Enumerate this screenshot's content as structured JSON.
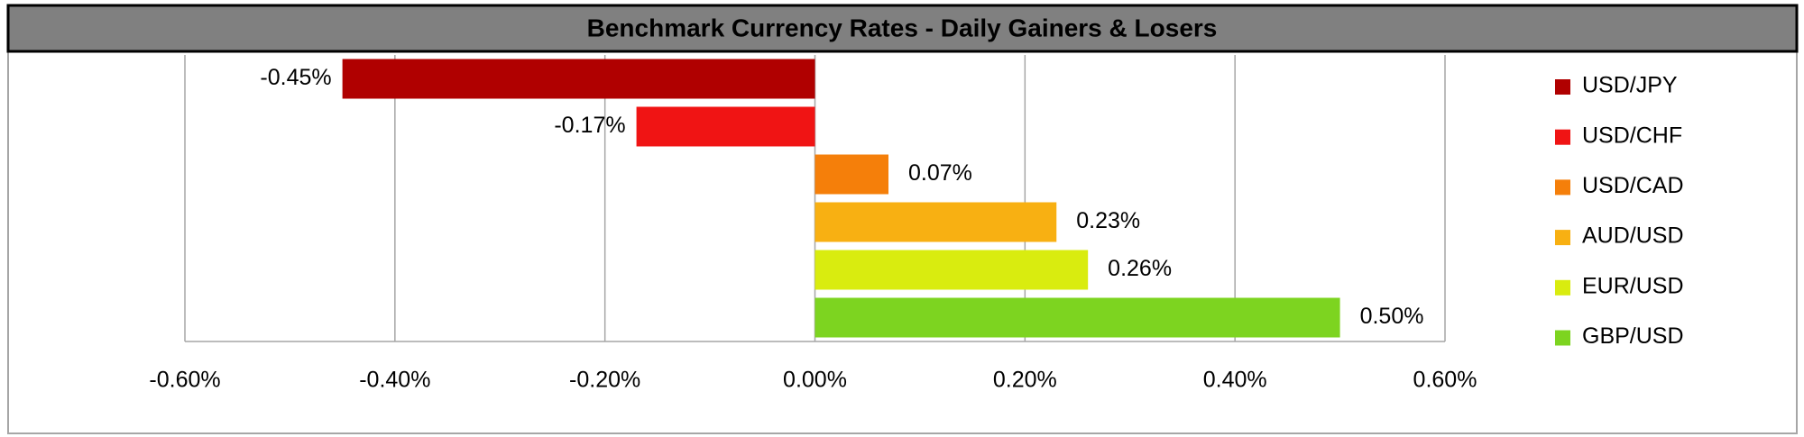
{
  "chart_data": {
    "type": "bar",
    "orientation": "horizontal",
    "title": "Benchmark Currency Rates - Daily Gainers & Losers",
    "series": [
      {
        "name": "USD/JPY",
        "color": "#b00000",
        "values": [
          -0.45
        ],
        "value_labels": [
          "-0.45%"
        ]
      },
      {
        "name": "USD/CHF",
        "color": "#f01414",
        "values": [
          -0.17
        ],
        "value_labels": [
          "-0.17%"
        ]
      },
      {
        "name": "USD/CAD",
        "color": "#f57f0a",
        "values": [
          0.07
        ],
        "value_labels": [
          "0.07%"
        ]
      },
      {
        "name": "AUD/USD",
        "color": "#f8b012",
        "values": [
          0.23
        ],
        "value_labels": [
          "0.23%"
        ]
      },
      {
        "name": "EUR/USD",
        "color": "#d9ec0f",
        "values": [
          0.26
        ],
        "value_labels": [
          "0.26%"
        ]
      },
      {
        "name": "GBP/USD",
        "color": "#7dd420",
        "values": [
          0.5
        ],
        "value_labels": [
          "0.50%"
        ]
      }
    ],
    "xlim": [
      -0.6,
      0.6
    ],
    "xticks": [
      {
        "value": -0.6,
        "label": "-0.60%"
      },
      {
        "value": -0.4,
        "label": "-0.40%"
      },
      {
        "value": -0.2,
        "label": "-0.20%"
      },
      {
        "value": 0,
        "label": "0.00%"
      },
      {
        "value": 0.2,
        "label": "0.20%"
      },
      {
        "value": 0.4,
        "label": "0.40%"
      },
      {
        "value": 0.6,
        "label": "0.60%"
      }
    ],
    "grid": true,
    "legend": "right"
  }
}
